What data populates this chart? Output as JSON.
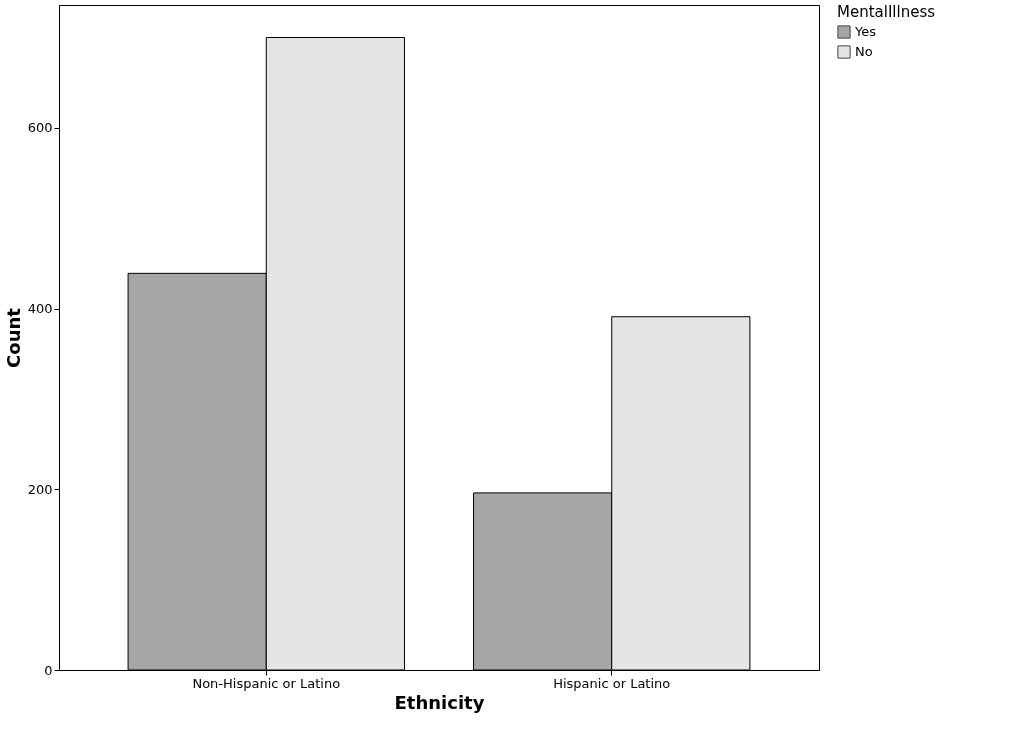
{
  "chart_data": {
    "type": "bar",
    "xlabel": "Ethnicity",
    "ylabel": "Count",
    "legend_title": "MentalIllness",
    "categories": [
      "Non-Hispanic or Latino",
      "Hispanic or Latino"
    ],
    "series": [
      {
        "name": "Yes",
        "color": "#a6a6a6",
        "values": [
          439,
          196
        ]
      },
      {
        "name": "No",
        "color": "#e5e5e5",
        "values": [
          700,
          391
        ]
      }
    ],
    "ylim": [
      0,
      736
    ],
    "yticks": [
      0,
      200,
      400,
      600
    ],
    "grid": false,
    "legend": "top right"
  }
}
